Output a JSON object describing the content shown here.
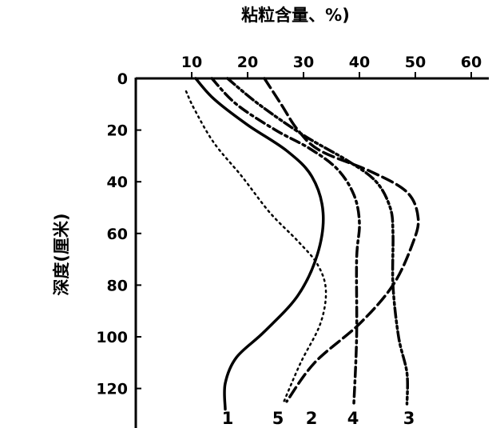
{
  "chart_data": {
    "type": "line",
    "title": "粘粒含量、%)",
    "xlabel": "粘粒含量、%)",
    "ylabel": "深度(厘米)",
    "xlim": [
      0,
      63
    ],
    "ylim": [
      0,
      135
    ],
    "x_axis_position": "top",
    "y_inverted": true,
    "x_ticks": [
      10,
      20,
      30,
      40,
      50,
      60
    ],
    "y_ticks": [
      0,
      20,
      40,
      60,
      80,
      100,
      120
    ],
    "grid": false,
    "legend": "inline labels at curve ends (bottom)",
    "series": [
      {
        "name": "1",
        "style": "solid",
        "points": [
          [
            10.7,
            0
          ],
          [
            14,
            8
          ],
          [
            20,
            18
          ],
          [
            27,
            28
          ],
          [
            31.5,
            38
          ],
          [
            33.5,
            52
          ],
          [
            32.5,
            68
          ],
          [
            29,
            84
          ],
          [
            23,
            98
          ],
          [
            18,
            108
          ],
          [
            16,
            118
          ],
          [
            16,
            128
          ]
        ]
      },
      {
        "name": "5",
        "style": "dotted",
        "points": [
          [
            9,
            5
          ],
          [
            10.5,
            12
          ],
          [
            14,
            25
          ],
          [
            19,
            38
          ],
          [
            24,
            52
          ],
          [
            29,
            63
          ],
          [
            32.5,
            72
          ],
          [
            34,
            82
          ],
          [
            33,
            95
          ],
          [
            29.5,
            110
          ],
          [
            26.5,
            125
          ]
        ]
      },
      {
        "name": "2",
        "style": "long-dash",
        "points": [
          [
            23,
            0
          ],
          [
            26,
            10
          ],
          [
            29,
            20
          ],
          [
            33,
            28
          ],
          [
            42,
            36
          ],
          [
            48.5,
            44
          ],
          [
            50.5,
            54
          ],
          [
            49.5,
            64
          ],
          [
            46,
            80
          ],
          [
            40,
            95
          ],
          [
            32,
            110
          ],
          [
            27,
            125
          ]
        ]
      },
      {
        "name": "4",
        "style": "dash-dot",
        "points": [
          [
            13.6,
            0
          ],
          [
            18,
            10
          ],
          [
            25,
            20
          ],
          [
            31,
            27
          ],
          [
            36,
            35
          ],
          [
            39,
            45
          ],
          [
            40,
            56
          ],
          [
            39.5,
            70
          ],
          [
            39.5,
            100
          ],
          [
            39,
            126
          ]
        ]
      },
      {
        "name": "3",
        "style": "dash-dot-dot",
        "points": [
          [
            16.4,
            0
          ],
          [
            22,
            10
          ],
          [
            30,
            22
          ],
          [
            38,
            32
          ],
          [
            43,
            40
          ],
          [
            45.5,
            50
          ],
          [
            46,
            60
          ],
          [
            46,
            80
          ],
          [
            47,
            100
          ],
          [
            48.5,
            114
          ],
          [
            48.5,
            126
          ]
        ]
      }
    ]
  }
}
